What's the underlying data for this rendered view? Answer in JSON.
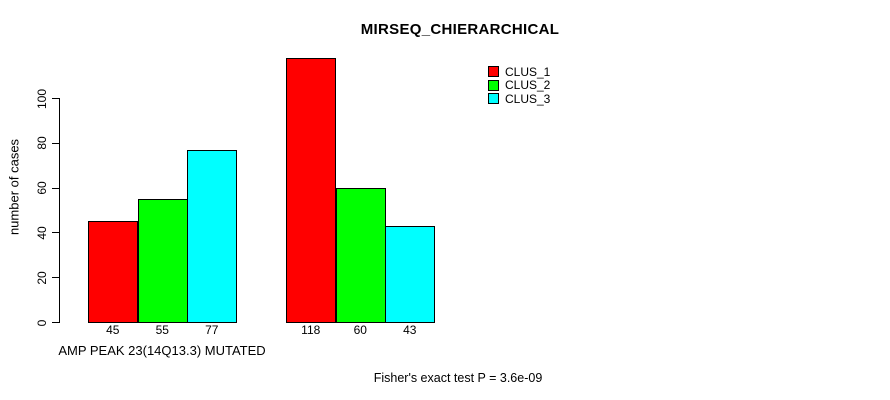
{
  "title": "MIRSEQ_CHIERARCHICAL",
  "colors": {
    "background": "#ffffff",
    "axis": "#000000",
    "text": "#000000",
    "clus_1": "#ff0000",
    "clus_2": "#00ff00",
    "clus_3": "#00ffff"
  },
  "legend": {
    "entries": [
      {
        "label": "CLUS_1",
        "color": "#ff0000"
      },
      {
        "label": "CLUS_2",
        "color": "#00ff00"
      },
      {
        "label": "CLUS_3",
        "color": "#00ffff"
      }
    ]
  },
  "chart_data": {
    "type": "bar",
    "title": "MIRSEQ_CHIERARCHICAL",
    "xlabel": "AMP PEAK 23(14Q13.3) MUTATED",
    "ylabel": "number of cases",
    "categories": [
      "AMP PEAK 23(14Q13.3) MUTATED",
      ""
    ],
    "series": [
      {
        "name": "CLUS_1",
        "color": "#ff0000",
        "values": [
          45,
          118
        ]
      },
      {
        "name": "CLUS_2",
        "color": "#00ff00",
        "values": [
          55,
          60
        ]
      },
      {
        "name": "CLUS_3",
        "color": "#00ffff",
        "values": [
          77,
          43
        ]
      }
    ],
    "bar_value_labels": [
      [
        45,
        55,
        77
      ],
      [
        118,
        60,
        43
      ]
    ],
    "yticks": [
      0,
      20,
      40,
      60,
      80,
      100
    ],
    "ylim": [
      0,
      118
    ],
    "grid": false,
    "legend_position": "top-right",
    "annotation": "Fisher's exact test P = 3.6e-09"
  }
}
